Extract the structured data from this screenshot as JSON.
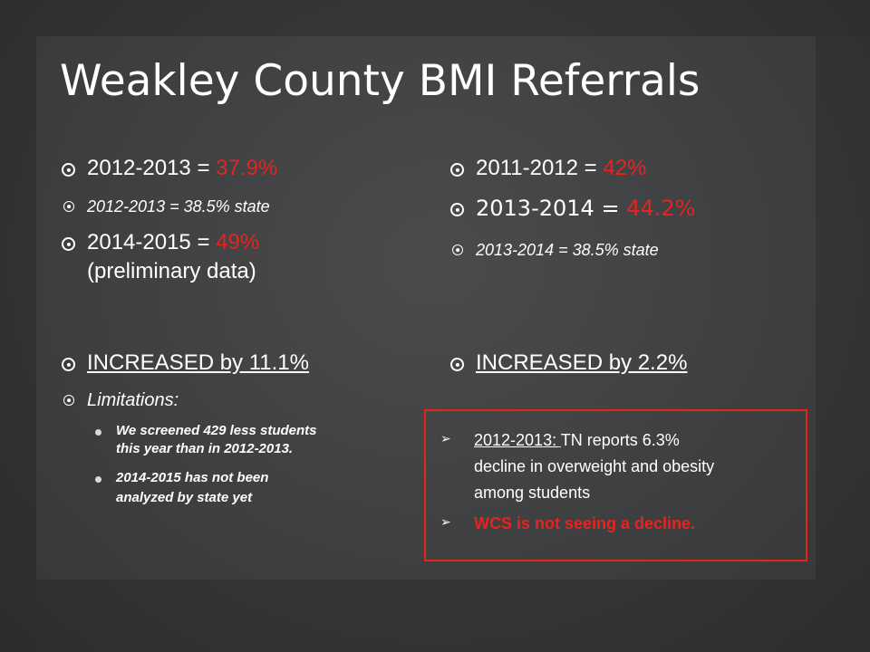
{
  "slide": {
    "title": "Weakley County BMI Referrals",
    "left_column": {
      "rate_2012_label": "2012-2013 = ",
      "rate_2012_value": "37.9%",
      "state_2012": "2012-2013 = 38.5% state",
      "rate_2014_label": "2014-2015 = ",
      "rate_2014_value": "49%",
      "rate_2014_note": "(preliminary data)",
      "increase": "INCREASED by 11.1%",
      "limitations_heading": "Limitations:",
      "limitation_1_line1": "We screened 429 less students",
      "limitation_1_line2": "this year than in 2012-2013.",
      "limitation_2_line1": "2014-2015 has not been",
      "limitation_2_line2": "analyzed by state yet"
    },
    "right_column": {
      "rate_2011_label": "2011-2012 = ",
      "rate_2011_value": "42%",
      "rate_2013_label": "2013-2014 = ",
      "rate_2013_value": "44.2%",
      "state_2013": "2013-2014 = 38.5% state",
      "increase": "INCREASED by 2.2%"
    },
    "callout": {
      "point_1_year": "2012-2013: ",
      "point_1_line1_rest": "TN reports 6.3%",
      "point_1_line2": "decline in overweight and obesity",
      "point_1_line3": "among students",
      "point_2": "WCS is not seeing a decline."
    },
    "colors": {
      "background": "#3c3d3f",
      "text": "#ffffff",
      "accent_red": "#e8231e"
    }
  }
}
